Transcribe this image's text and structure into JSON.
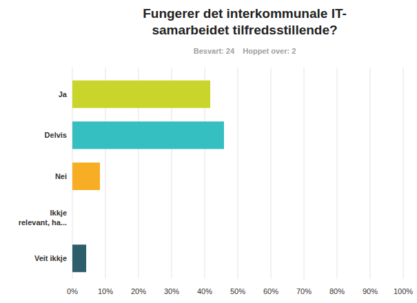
{
  "chart_data": {
    "type": "bar",
    "orientation": "horizontal",
    "title": "Fungerer det interkommunale IT-samarbeidet tilfredsstillende?",
    "subtitle": "Besvart: 24    Hoppet over: 2",
    "categories": [
      "Ja",
      "Delvis",
      "Nei",
      "Ikkje relevant, ha...",
      "Veit ikkje"
    ],
    "values": [
      41.67,
      45.83,
      8.33,
      0,
      4.17
    ],
    "colors": [
      "#c9d52b",
      "#35bfc0",
      "#f8ae24",
      "#9e9e9e",
      "#2e5d6b"
    ],
    "xlim": [
      0,
      100
    ],
    "xticks": [
      {
        "value": 0,
        "label": "0%"
      },
      {
        "value": 10,
        "label": "10%"
      },
      {
        "value": 20,
        "label": "20%"
      },
      {
        "value": 30,
        "label": "30%"
      },
      {
        "value": 40,
        "label": "40%"
      },
      {
        "value": 50,
        "label": "50%"
      },
      {
        "value": 60,
        "label": "60%"
      },
      {
        "value": 70,
        "label": "70%"
      },
      {
        "value": 80,
        "label": "80%"
      },
      {
        "value": 90,
        "label": "90%"
      },
      {
        "value": 100,
        "label": "100%"
      }
    ],
    "grid": true
  }
}
